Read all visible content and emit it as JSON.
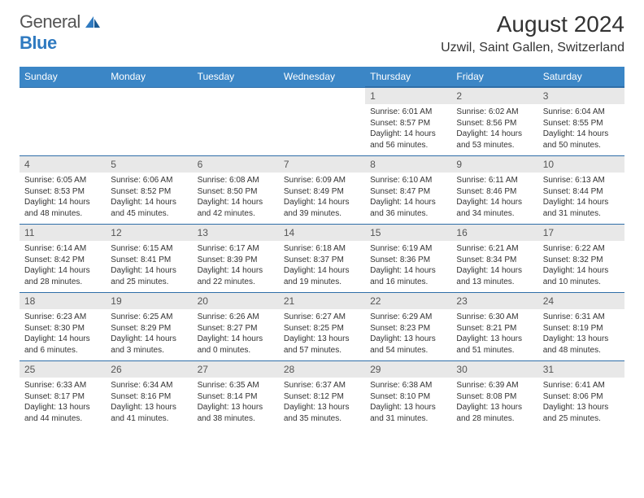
{
  "logo": {
    "word1": "General",
    "word2": "Blue"
  },
  "title": "August 2024",
  "location": "Uzwil, Saint Gallen, Switzerland",
  "colors": {
    "header_bg": "#3b86c6",
    "header_text": "#ffffff",
    "daynum_bg": "#e8e8e8",
    "border": "#2f6ea8",
    "logo_gray": "#555555",
    "logo_blue": "#2f7ac0"
  },
  "weekdays": [
    "Sunday",
    "Monday",
    "Tuesday",
    "Wednesday",
    "Thursday",
    "Friday",
    "Saturday"
  ],
  "weeks": [
    [
      null,
      null,
      null,
      null,
      {
        "n": "1",
        "sr": "Sunrise: 6:01 AM",
        "ss": "Sunset: 8:57 PM",
        "dl": "Daylight: 14 hours and 56 minutes."
      },
      {
        "n": "2",
        "sr": "Sunrise: 6:02 AM",
        "ss": "Sunset: 8:56 PM",
        "dl": "Daylight: 14 hours and 53 minutes."
      },
      {
        "n": "3",
        "sr": "Sunrise: 6:04 AM",
        "ss": "Sunset: 8:55 PM",
        "dl": "Daylight: 14 hours and 50 minutes."
      }
    ],
    [
      {
        "n": "4",
        "sr": "Sunrise: 6:05 AM",
        "ss": "Sunset: 8:53 PM",
        "dl": "Daylight: 14 hours and 48 minutes."
      },
      {
        "n": "5",
        "sr": "Sunrise: 6:06 AM",
        "ss": "Sunset: 8:52 PM",
        "dl": "Daylight: 14 hours and 45 minutes."
      },
      {
        "n": "6",
        "sr": "Sunrise: 6:08 AM",
        "ss": "Sunset: 8:50 PM",
        "dl": "Daylight: 14 hours and 42 minutes."
      },
      {
        "n": "7",
        "sr": "Sunrise: 6:09 AM",
        "ss": "Sunset: 8:49 PM",
        "dl": "Daylight: 14 hours and 39 minutes."
      },
      {
        "n": "8",
        "sr": "Sunrise: 6:10 AM",
        "ss": "Sunset: 8:47 PM",
        "dl": "Daylight: 14 hours and 36 minutes."
      },
      {
        "n": "9",
        "sr": "Sunrise: 6:11 AM",
        "ss": "Sunset: 8:46 PM",
        "dl": "Daylight: 14 hours and 34 minutes."
      },
      {
        "n": "10",
        "sr": "Sunrise: 6:13 AM",
        "ss": "Sunset: 8:44 PM",
        "dl": "Daylight: 14 hours and 31 minutes."
      }
    ],
    [
      {
        "n": "11",
        "sr": "Sunrise: 6:14 AM",
        "ss": "Sunset: 8:42 PM",
        "dl": "Daylight: 14 hours and 28 minutes."
      },
      {
        "n": "12",
        "sr": "Sunrise: 6:15 AM",
        "ss": "Sunset: 8:41 PM",
        "dl": "Daylight: 14 hours and 25 minutes."
      },
      {
        "n": "13",
        "sr": "Sunrise: 6:17 AM",
        "ss": "Sunset: 8:39 PM",
        "dl": "Daylight: 14 hours and 22 minutes."
      },
      {
        "n": "14",
        "sr": "Sunrise: 6:18 AM",
        "ss": "Sunset: 8:37 PM",
        "dl": "Daylight: 14 hours and 19 minutes."
      },
      {
        "n": "15",
        "sr": "Sunrise: 6:19 AM",
        "ss": "Sunset: 8:36 PM",
        "dl": "Daylight: 14 hours and 16 minutes."
      },
      {
        "n": "16",
        "sr": "Sunrise: 6:21 AM",
        "ss": "Sunset: 8:34 PM",
        "dl": "Daylight: 14 hours and 13 minutes."
      },
      {
        "n": "17",
        "sr": "Sunrise: 6:22 AM",
        "ss": "Sunset: 8:32 PM",
        "dl": "Daylight: 14 hours and 10 minutes."
      }
    ],
    [
      {
        "n": "18",
        "sr": "Sunrise: 6:23 AM",
        "ss": "Sunset: 8:30 PM",
        "dl": "Daylight: 14 hours and 6 minutes."
      },
      {
        "n": "19",
        "sr": "Sunrise: 6:25 AM",
        "ss": "Sunset: 8:29 PM",
        "dl": "Daylight: 14 hours and 3 minutes."
      },
      {
        "n": "20",
        "sr": "Sunrise: 6:26 AM",
        "ss": "Sunset: 8:27 PM",
        "dl": "Daylight: 14 hours and 0 minutes."
      },
      {
        "n": "21",
        "sr": "Sunrise: 6:27 AM",
        "ss": "Sunset: 8:25 PM",
        "dl": "Daylight: 13 hours and 57 minutes."
      },
      {
        "n": "22",
        "sr": "Sunrise: 6:29 AM",
        "ss": "Sunset: 8:23 PM",
        "dl": "Daylight: 13 hours and 54 minutes."
      },
      {
        "n": "23",
        "sr": "Sunrise: 6:30 AM",
        "ss": "Sunset: 8:21 PM",
        "dl": "Daylight: 13 hours and 51 minutes."
      },
      {
        "n": "24",
        "sr": "Sunrise: 6:31 AM",
        "ss": "Sunset: 8:19 PM",
        "dl": "Daylight: 13 hours and 48 minutes."
      }
    ],
    [
      {
        "n": "25",
        "sr": "Sunrise: 6:33 AM",
        "ss": "Sunset: 8:17 PM",
        "dl": "Daylight: 13 hours and 44 minutes."
      },
      {
        "n": "26",
        "sr": "Sunrise: 6:34 AM",
        "ss": "Sunset: 8:16 PM",
        "dl": "Daylight: 13 hours and 41 minutes."
      },
      {
        "n": "27",
        "sr": "Sunrise: 6:35 AM",
        "ss": "Sunset: 8:14 PM",
        "dl": "Daylight: 13 hours and 38 minutes."
      },
      {
        "n": "28",
        "sr": "Sunrise: 6:37 AM",
        "ss": "Sunset: 8:12 PM",
        "dl": "Daylight: 13 hours and 35 minutes."
      },
      {
        "n": "29",
        "sr": "Sunrise: 6:38 AM",
        "ss": "Sunset: 8:10 PM",
        "dl": "Daylight: 13 hours and 31 minutes."
      },
      {
        "n": "30",
        "sr": "Sunrise: 6:39 AM",
        "ss": "Sunset: 8:08 PM",
        "dl": "Daylight: 13 hours and 28 minutes."
      },
      {
        "n": "31",
        "sr": "Sunrise: 6:41 AM",
        "ss": "Sunset: 8:06 PM",
        "dl": "Daylight: 13 hours and 25 minutes."
      }
    ]
  ]
}
